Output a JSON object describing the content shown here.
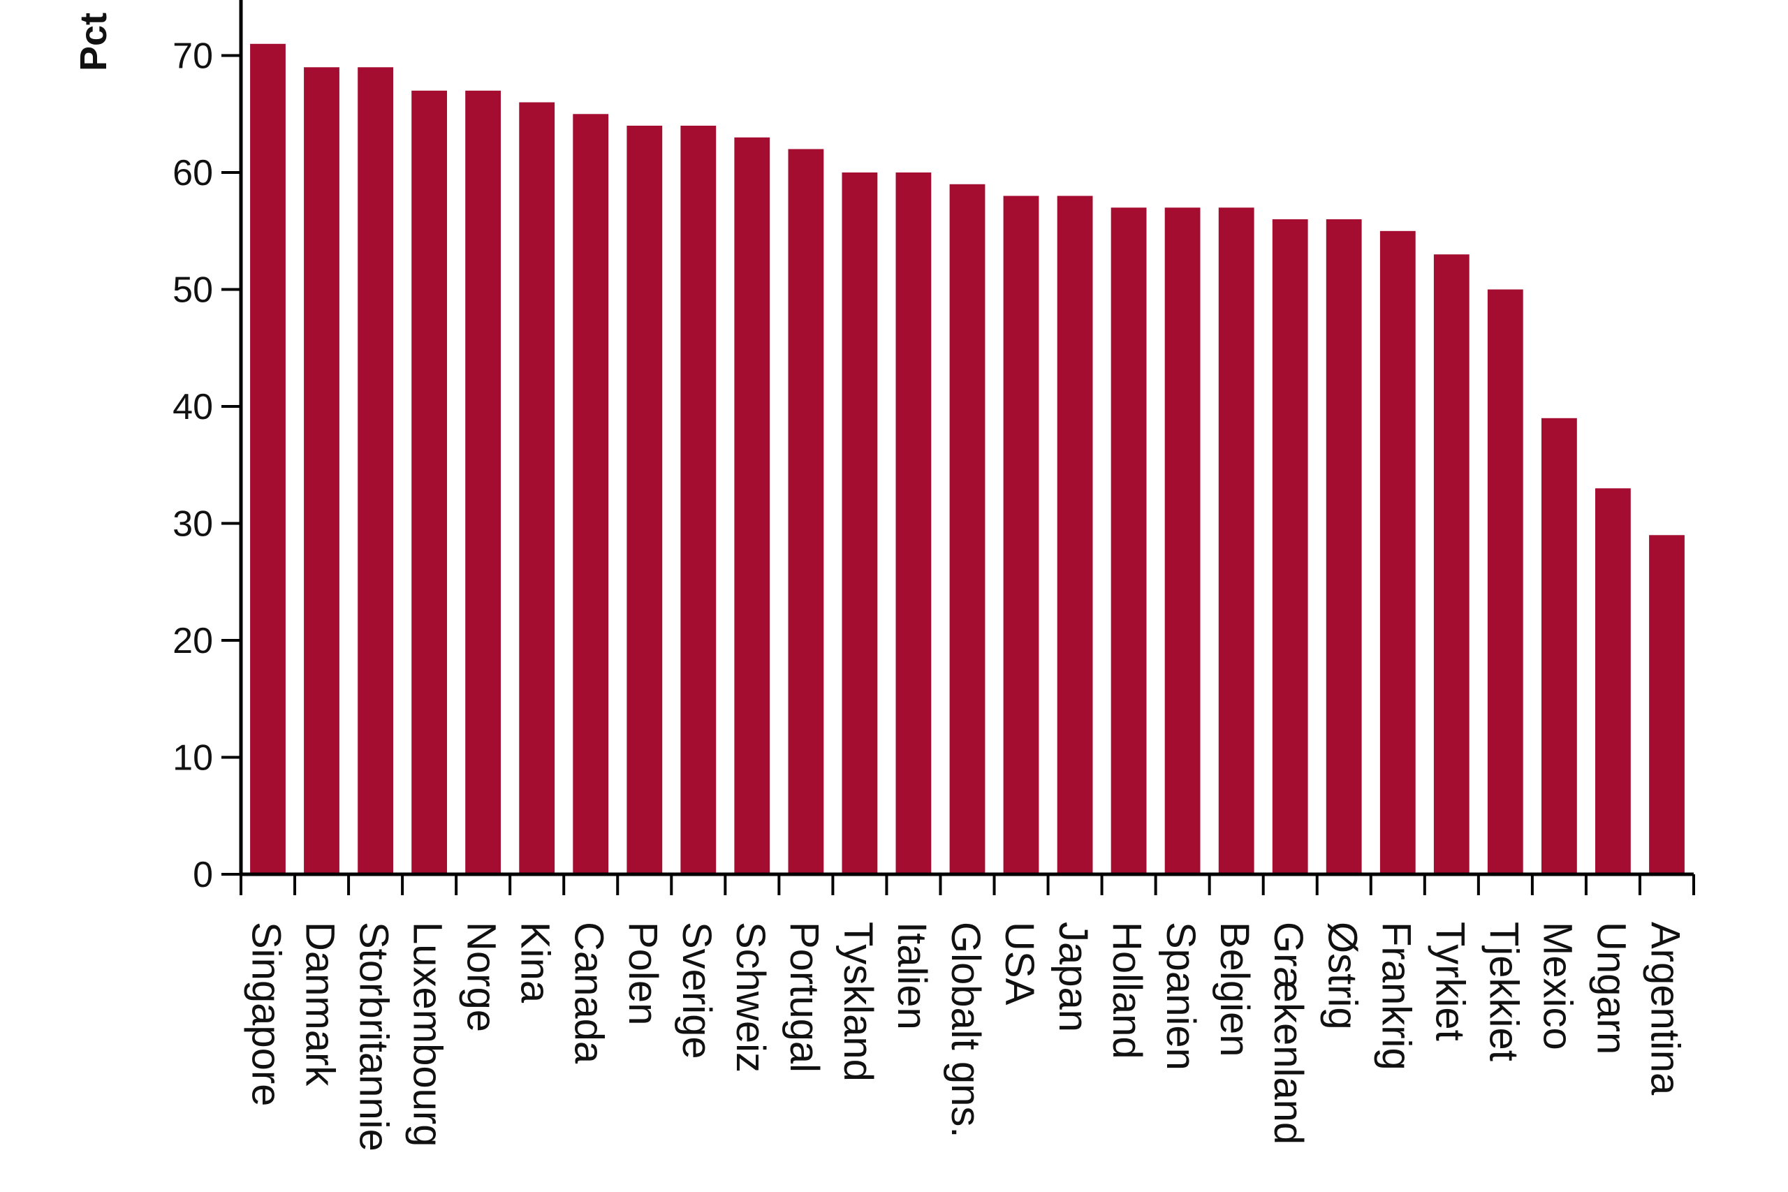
{
  "chart_data": {
    "type": "bar",
    "ylabel": "Pct",
    "ylim": [
      0,
      75
    ],
    "yticks": [
      0,
      10,
      20,
      30,
      40,
      50,
      60,
      70
    ],
    "grid": false,
    "categories": [
      "Singapore",
      "Danmark",
      "Storbritannie",
      "Luxembourg",
      "Norge",
      "Kina",
      "Canada",
      "Polen",
      "Sverige",
      "Schweiz",
      "Portugal",
      "Tyskland",
      "Italien",
      "Globalt gns.",
      "USA",
      "Japan",
      "Holland",
      "Spanien",
      "Belgien",
      "Grækenland",
      "Østrig",
      "Frankrig",
      "Tyrkiet",
      "Tjekkiet",
      "Mexico",
      "Ungarn",
      "Argentina"
    ],
    "values": [
      71,
      69,
      69,
      67,
      67,
      66,
      65,
      64,
      64,
      63,
      62,
      60,
      60,
      59,
      58,
      58,
      57,
      57,
      57,
      56,
      56,
      55,
      53,
      50,
      39,
      33,
      29
    ],
    "bar_color": "#a50d30"
  }
}
